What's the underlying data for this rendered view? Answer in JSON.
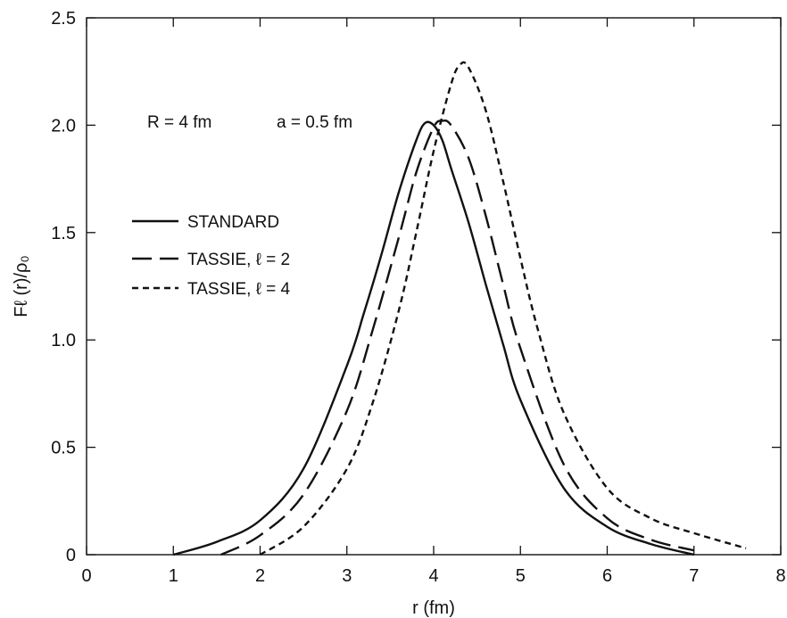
{
  "chart_data": {
    "type": "line",
    "title": "",
    "xlabel": "r (fm)",
    "ylabel": "Fℓ (r)/ρ₀",
    "xlim": [
      0,
      8
    ],
    "ylim": [
      0,
      2.5
    ],
    "x_ticks": [
      "0",
      "1",
      "2",
      "3",
      "4",
      "5",
      "6",
      "7",
      "8"
    ],
    "y_ticks": [
      "0",
      "0.5",
      "1.0",
      "1.5",
      "2.0",
      "2.5"
    ],
    "grid": false,
    "legend_position": "left",
    "annotations": [
      "R = 4 fm",
      "a = 0.5 fm"
    ],
    "series": [
      {
        "name": "STANDARD",
        "style": "solid",
        "x": [
          1.0,
          1.5,
          2.0,
          2.5,
          3.0,
          3.2,
          3.4,
          3.6,
          3.8,
          3.9,
          4.0,
          4.1,
          4.2,
          4.4,
          4.6,
          4.8,
          5.0,
          5.5,
          6.0,
          6.5,
          7.0
        ],
        "y": [
          0.0,
          0.06,
          0.16,
          0.4,
          0.88,
          1.13,
          1.4,
          1.69,
          1.93,
          2.01,
          2.0,
          1.93,
          1.8,
          1.55,
          1.26,
          0.98,
          0.72,
          0.31,
          0.13,
          0.05,
          0.0
        ]
      },
      {
        "name": "TASSIE, ℓ = 2",
        "style": "dashed",
        "x": [
          1.55,
          2.0,
          2.5,
          3.0,
          3.3,
          3.6,
          3.8,
          4.0,
          4.1,
          4.2,
          4.4,
          4.6,
          4.8,
          5.0,
          5.5,
          6.0,
          6.5,
          7.0
        ],
        "y": [
          0.0,
          0.09,
          0.28,
          0.67,
          1.05,
          1.48,
          1.78,
          1.99,
          2.02,
          2.0,
          1.85,
          1.58,
          1.26,
          0.96,
          0.42,
          0.17,
          0.07,
          0.02
        ]
      },
      {
        "name": "TASSIE, ℓ = 4",
        "style": "dotted",
        "x": [
          2.0,
          2.5,
          3.0,
          3.3,
          3.6,
          3.8,
          4.0,
          4.2,
          4.3,
          4.4,
          4.6,
          4.8,
          5.0,
          5.2,
          5.5,
          6.0,
          6.5,
          7.0,
          7.6
        ],
        "y": [
          0.0,
          0.13,
          0.4,
          0.71,
          1.14,
          1.5,
          1.88,
          2.19,
          2.28,
          2.27,
          2.07,
          1.74,
          1.38,
          1.05,
          0.66,
          0.31,
          0.17,
          0.1,
          0.03
        ]
      }
    ]
  }
}
